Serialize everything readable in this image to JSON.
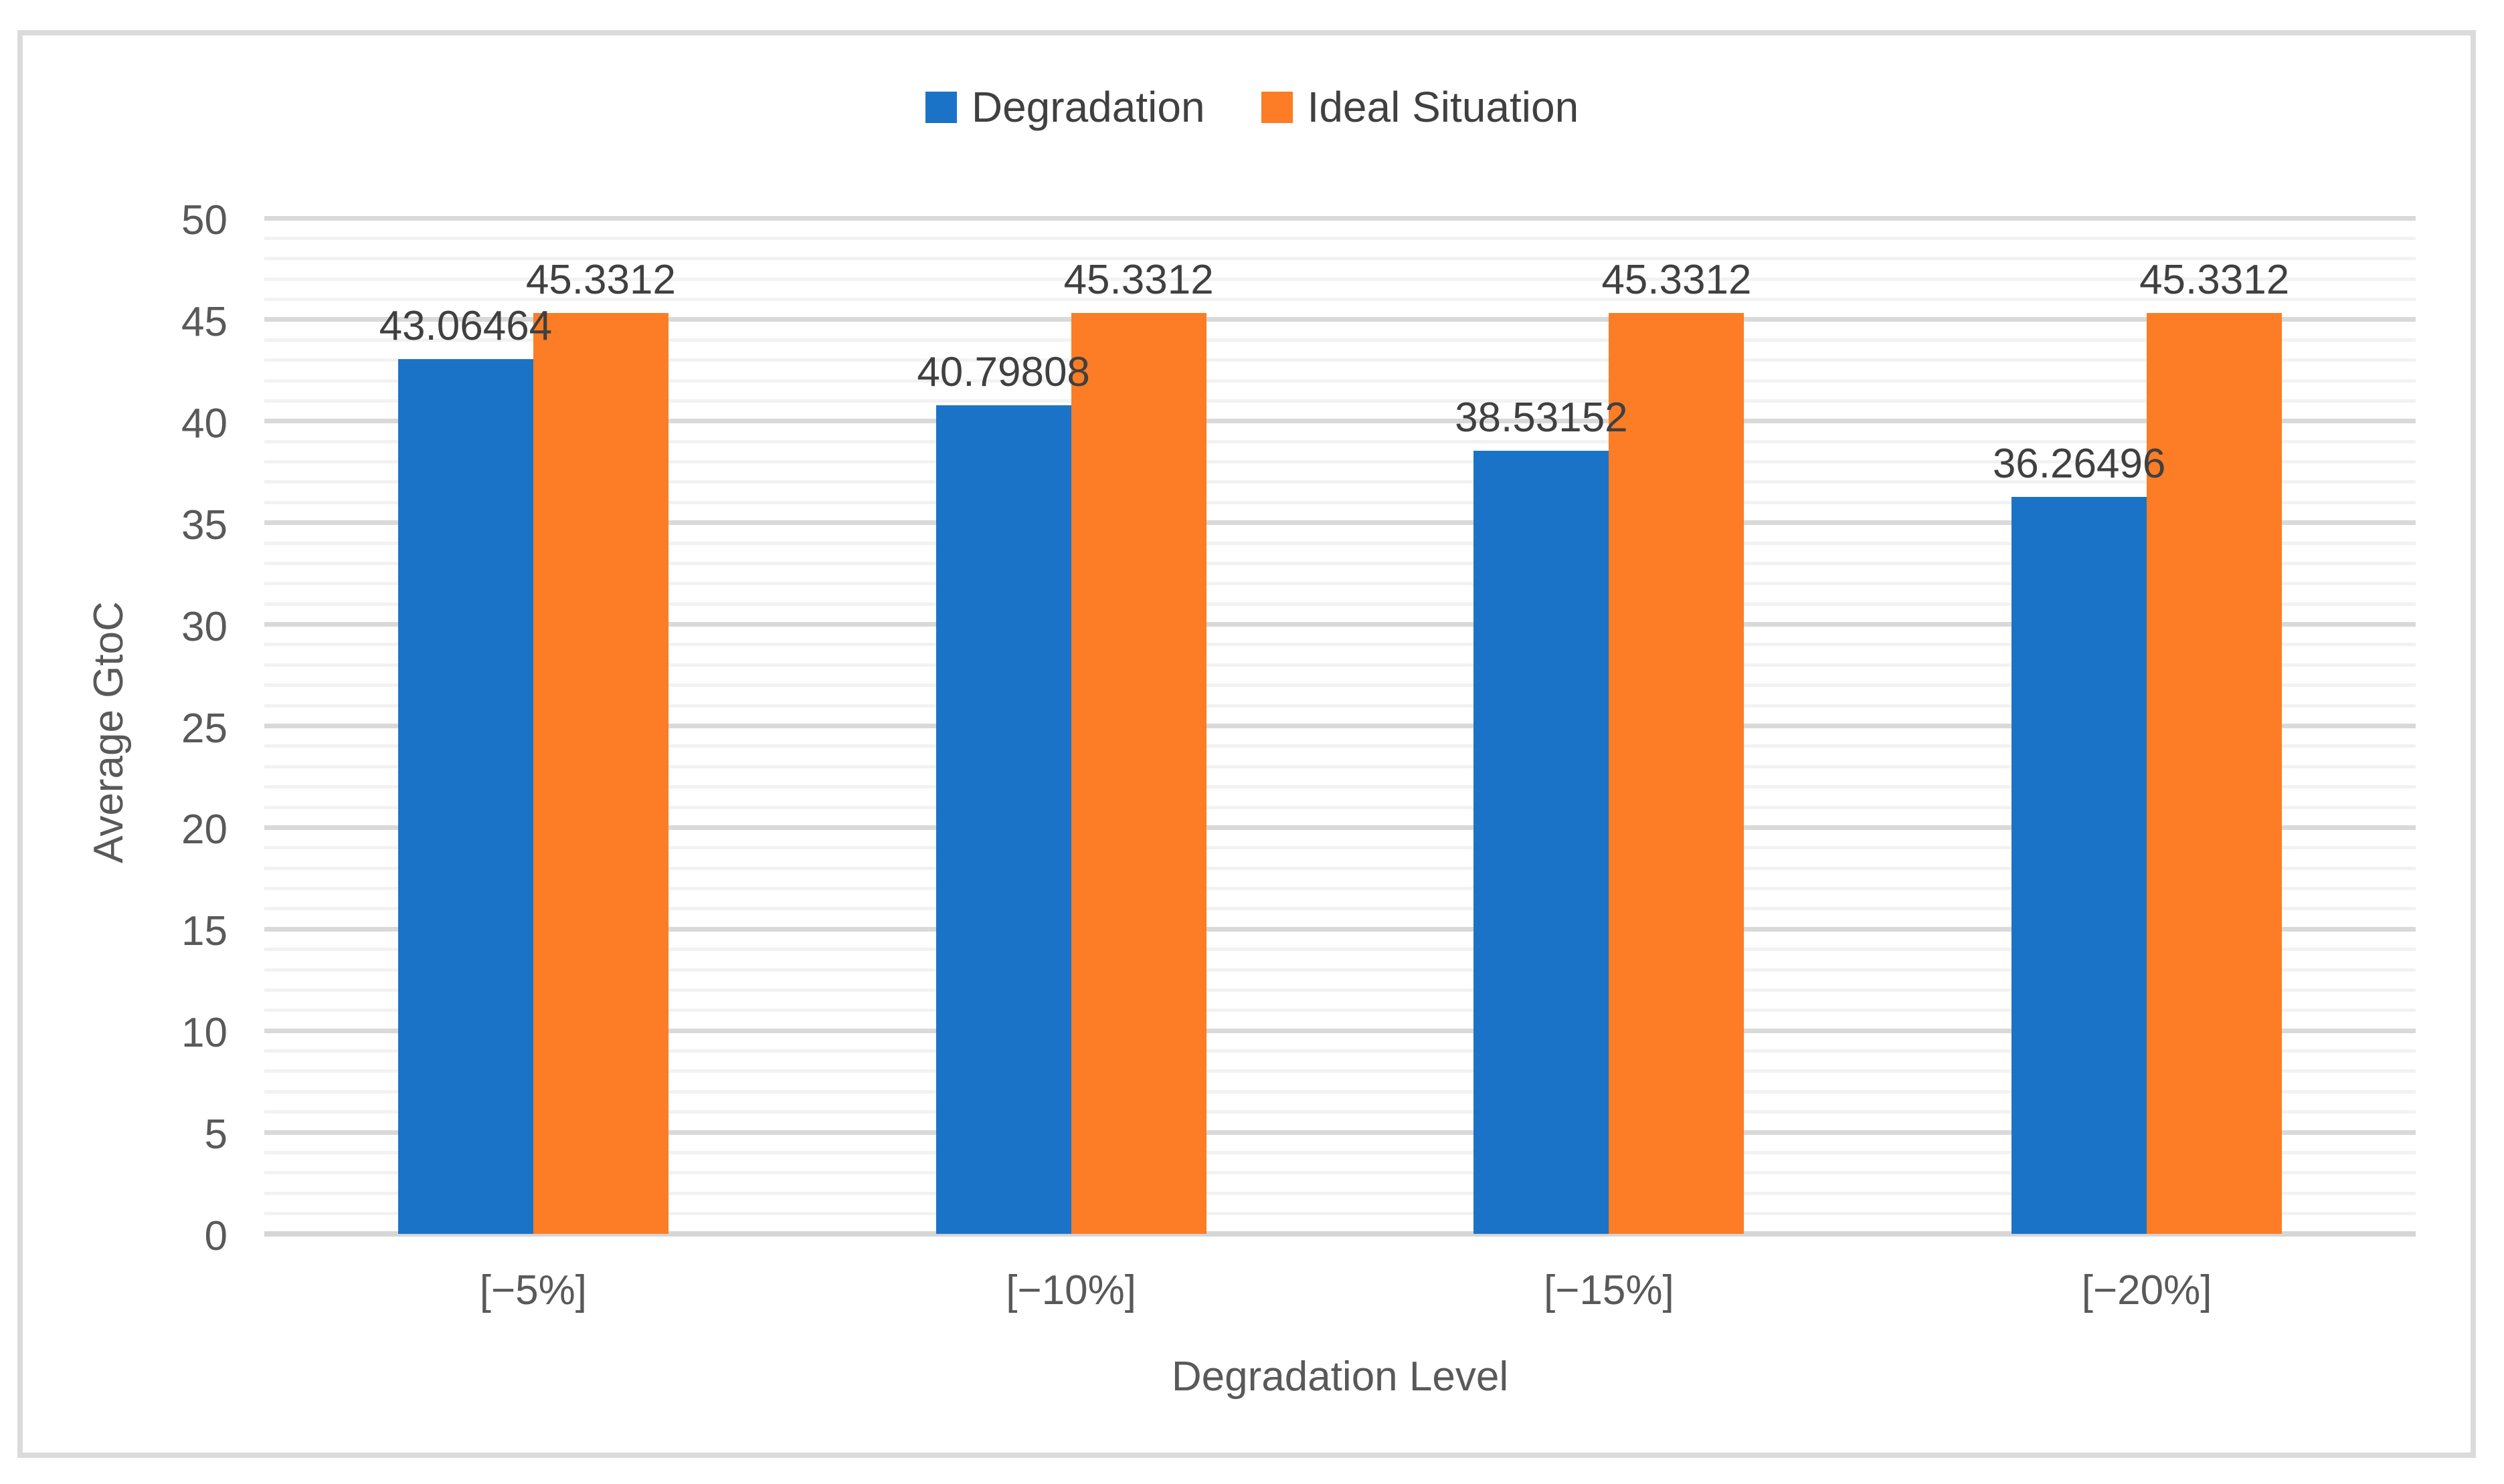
{
  "chart_data": {
    "type": "bar",
    "categories": [
      "[−5%]",
      "[−10%]",
      "[−15%]",
      "[−20%]"
    ],
    "series": [
      {
        "name": "Degradation",
        "color": "#1b73c8",
        "values": [
          43.06464,
          40.79808,
          38.53152,
          36.26496
        ]
      },
      {
        "name": "Ideal Situation",
        "color": "#fc7d25",
        "values": [
          45.3312,
          45.3312,
          45.3312,
          45.3312
        ]
      }
    ],
    "data_labels": {
      "Degradation": [
        "43.06464",
        "40.79808",
        "38.53152",
        "36.26496"
      ],
      "Ideal Situation": [
        "45.3312",
        "45.3312",
        "45.3312",
        "45.3312"
      ]
    },
    "title": "",
    "xlabel": "Degradation Level",
    "ylabel": "Average GtoC",
    "ylim": [
      0,
      50
    ],
    "y_major_step": 5,
    "y_minor_step": 1,
    "y_ticks": [
      "0",
      "5",
      "10",
      "15",
      "20",
      "25",
      "30",
      "35",
      "40",
      "45",
      "50"
    ],
    "legend_position": "top-center",
    "grid": "horizontal, minor every 1 unit, major every 5 units"
  },
  "colors": {
    "background": "#ffffff",
    "frame_border": "#dbdbdb",
    "grid_minor": "#f2f2f2",
    "grid_major": "#d9d9d9",
    "axis_baseline": "#d6d6d6",
    "axis_text": "#595959",
    "data_label_text": "#404040",
    "legend_text": "#404040"
  }
}
